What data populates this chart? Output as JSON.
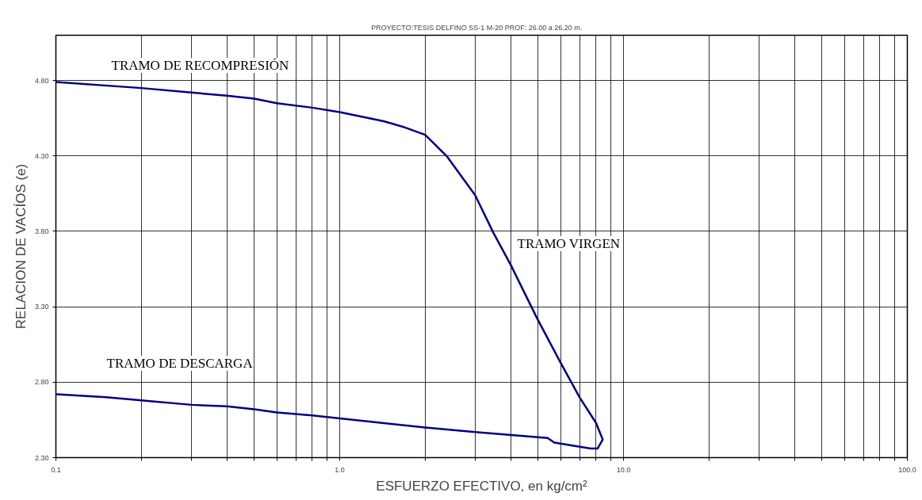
{
  "chart_data": {
    "type": "line",
    "title": "PROYECTO:TESIS DELFINO  SS-1  M-20  PROF: 26.00  a  26.20 m.",
    "xlabel": "ESFUERZO EFECTIVO, en kg/cm²",
    "ylabel": "RELACION DE VACÍOS (e)",
    "log": "x",
    "grid": true,
    "marker": "none",
    "line_style": "solid",
    "xlim": [
      0.1,
      100
    ],
    "ylim": [
      2.3,
      5.1
    ],
    "xticks": [
      {
        "value": 0.1,
        "label": "0.1"
      },
      {
        "value": 0.2,
        "label": null
      },
      {
        "value": 0.3,
        "label": null
      },
      {
        "value": 0.4,
        "label": null
      },
      {
        "value": 0.5,
        "label": null
      },
      {
        "value": 0.6,
        "label": null
      },
      {
        "value": 0.7,
        "label": null
      },
      {
        "value": 0.8,
        "label": null
      },
      {
        "value": 0.9,
        "label": null
      },
      {
        "value": 1,
        "label": "1.0"
      },
      {
        "value": 2,
        "label": null
      },
      {
        "value": 3,
        "label": null
      },
      {
        "value": 4,
        "label": null
      },
      {
        "value": 5,
        "label": null
      },
      {
        "value": 6,
        "label": null
      },
      {
        "value": 7,
        "label": null
      },
      {
        "value": 8,
        "label": null
      },
      {
        "value": 9,
        "label": null
      },
      {
        "value": 10,
        "label": "10.0"
      },
      {
        "value": 20,
        "label": null
      },
      {
        "value": 30,
        "label": null
      },
      {
        "value": 40,
        "label": null
      },
      {
        "value": 50,
        "label": null
      },
      {
        "value": 60,
        "label": null
      },
      {
        "value": 70,
        "label": null
      },
      {
        "value": 80,
        "label": null
      },
      {
        "value": 90,
        "label": null
      },
      {
        "value": 100,
        "label": "100.0"
      }
    ],
    "yticks": [
      {
        "value": 2.3,
        "label": "2.30"
      },
      {
        "value": 2.8,
        "label": "2.80"
      },
      {
        "value": 3.3,
        "label": "3.30"
      },
      {
        "value": 3.8,
        "label": "3.80"
      },
      {
        "value": 4.3,
        "label": "4.30"
      },
      {
        "value": 4.8,
        "label": "4.80"
      }
    ],
    "series": [
      {
        "color": "#000080",
        "x": [
          0.1,
          0.2,
          0.3,
          0.4,
          0.5,
          0.6,
          0.8,
          1.0,
          1.43,
          1.69,
          2.0,
          2.38,
          3.0,
          3.48,
          4.0,
          4.97,
          6.0,
          7.0,
          8.0,
          8.45,
          8.1,
          7.65,
          5.7,
          5.4,
          3.0,
          2.0,
          1.0,
          0.8,
          0.6,
          0.5,
          0.4,
          0.3,
          0.2,
          0.15,
          0.1
        ],
        "values": [
          4.79,
          4.75,
          4.72,
          4.7,
          4.68,
          4.65,
          4.62,
          4.59,
          4.53,
          4.49,
          4.44,
          4.3,
          4.04,
          3.79,
          3.58,
          3.22,
          2.93,
          2.7,
          2.53,
          2.42,
          2.36,
          2.36,
          2.4,
          2.43,
          2.47,
          2.5,
          2.56,
          2.58,
          2.6,
          2.62,
          2.64,
          2.65,
          2.68,
          2.7,
          2.72
        ]
      }
    ],
    "annotations": [
      "TRAMO DE RECOMPRESIÓN",
      "TRAMO VIRGEN",
      "TRAMO DE DESCARGA"
    ]
  }
}
